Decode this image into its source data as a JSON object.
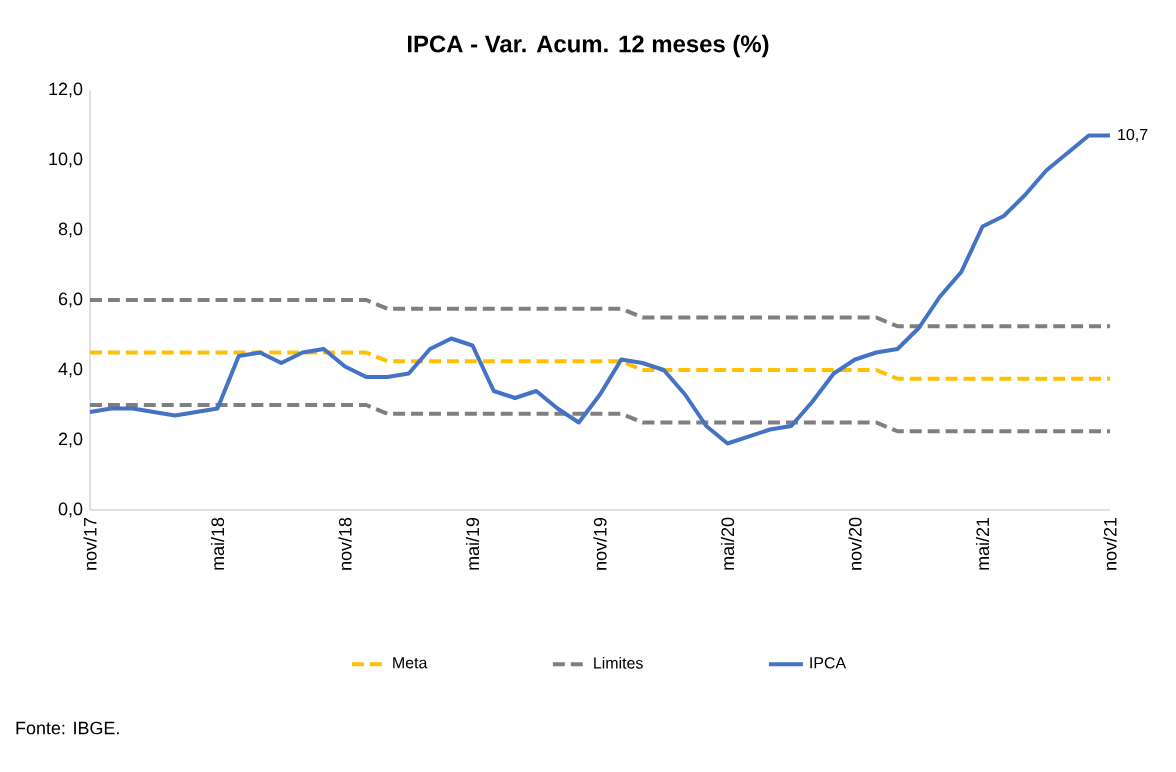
{
  "chart_data": {
    "type": "line",
    "title": "IPCA - Var. Acum. 12 meses (%)",
    "categories": [
      "nov/17",
      null,
      null,
      null,
      null,
      null,
      "mai/18",
      null,
      null,
      null,
      null,
      null,
      "nov/18",
      null,
      null,
      null,
      null,
      null,
      "mai/19",
      null,
      null,
      null,
      null,
      null,
      "nov/19",
      null,
      null,
      null,
      null,
      null,
      "mai/20",
      null,
      null,
      null,
      null,
      null,
      "nov/20",
      null,
      null,
      null,
      null,
      null,
      "mai/21",
      null,
      null,
      null,
      null,
      null,
      "nov/21"
    ],
    "series": [
      {
        "name": "Meta",
        "color": "#ffc000",
        "line_style": "dashed",
        "values": [
          4.5,
          4.5,
          4.5,
          4.5,
          4.5,
          4.5,
          4.5,
          4.5,
          4.5,
          4.5,
          4.5,
          4.5,
          4.5,
          4.5,
          4.25,
          4.25,
          4.25,
          4.25,
          4.25,
          4.25,
          4.25,
          4.25,
          4.25,
          4.25,
          4.25,
          4.25,
          4.0,
          4.0,
          4.0,
          4.0,
          4.0,
          4.0,
          4.0,
          4.0,
          4.0,
          4.0,
          4.0,
          4.0,
          3.75,
          3.75,
          3.75,
          3.75,
          3.75,
          3.75,
          3.75,
          3.75,
          3.75,
          3.75,
          3.75
        ]
      },
      {
        "name": "Limites",
        "color": "#7f7f7f",
        "line_style": "dashed",
        "values": [
          6.0,
          6.0,
          6.0,
          6.0,
          6.0,
          6.0,
          6.0,
          6.0,
          6.0,
          6.0,
          6.0,
          6.0,
          6.0,
          6.0,
          5.75,
          5.75,
          5.75,
          5.75,
          5.75,
          5.75,
          5.75,
          5.75,
          5.75,
          5.75,
          5.75,
          5.75,
          5.5,
          5.5,
          5.5,
          5.5,
          5.5,
          5.5,
          5.5,
          5.5,
          5.5,
          5.5,
          5.5,
          5.5,
          5.25,
          5.25,
          5.25,
          5.25,
          5.25,
          5.25,
          5.25,
          5.25,
          5.25,
          5.25,
          5.25
        ]
      },
      {
        "color": "#7f7f7f",
        "line_style": "dashed",
        "values": [
          3.0,
          3.0,
          3.0,
          3.0,
          3.0,
          3.0,
          3.0,
          3.0,
          3.0,
          3.0,
          3.0,
          3.0,
          3.0,
          3.0,
          2.75,
          2.75,
          2.75,
          2.75,
          2.75,
          2.75,
          2.75,
          2.75,
          2.75,
          2.75,
          2.75,
          2.75,
          2.5,
          2.5,
          2.5,
          2.5,
          2.5,
          2.5,
          2.5,
          2.5,
          2.5,
          2.5,
          2.5,
          2.5,
          2.25,
          2.25,
          2.25,
          2.25,
          2.25,
          2.25,
          2.25,
          2.25,
          2.25,
          2.25,
          2.25
        ]
      },
      {
        "name": "IPCA",
        "color": "#4472c4",
        "line_style": "solid",
        "values": [
          2.8,
          2.9,
          2.9,
          2.8,
          2.7,
          2.8,
          2.9,
          4.4,
          4.5,
          4.2,
          4.5,
          4.6,
          4.1,
          3.8,
          3.8,
          3.9,
          4.6,
          4.9,
          4.7,
          3.4,
          3.2,
          3.4,
          2.9,
          2.5,
          3.3,
          4.3,
          4.2,
          4.0,
          3.3,
          2.4,
          1.9,
          2.1,
          2.3,
          2.4,
          3.1,
          3.9,
          4.3,
          4.5,
          4.6,
          5.2,
          6.1,
          6.8,
          8.1,
          8.4,
          9.0,
          9.7,
          10.2,
          10.7,
          10.7
        ],
        "value_labels": [
          null,
          null,
          null,
          null,
          null,
          null,
          null,
          null,
          null,
          null,
          null,
          null,
          null,
          null,
          null,
          null,
          null,
          null,
          null,
          null,
          null,
          null,
          null,
          null,
          null,
          null,
          null,
          null,
          null,
          null,
          null,
          null,
          null,
          null,
          null,
          null,
          null,
          null,
          null,
          null,
          null,
          null,
          null,
          null,
          null,
          null,
          null,
          null,
          "10,7"
        ]
      }
    ],
    "ylim": [
      0,
      12
    ],
    "yticks": [
      {
        "value": 0,
        "label": "0,0"
      },
      {
        "value": 2,
        "label": "2,0"
      },
      {
        "value": 4,
        "label": "4,0"
      },
      {
        "value": 6,
        "label": "6,0"
      },
      {
        "value": 8,
        "label": "8,0"
      },
      {
        "value": 10,
        "label": "10,0"
      },
      {
        "value": 12,
        "label": "12,0"
      }
    ],
    "legend": "bottom",
    "grid": false,
    "marker": "none",
    "annotations": [
      "Fonte: IBGE."
    ]
  }
}
